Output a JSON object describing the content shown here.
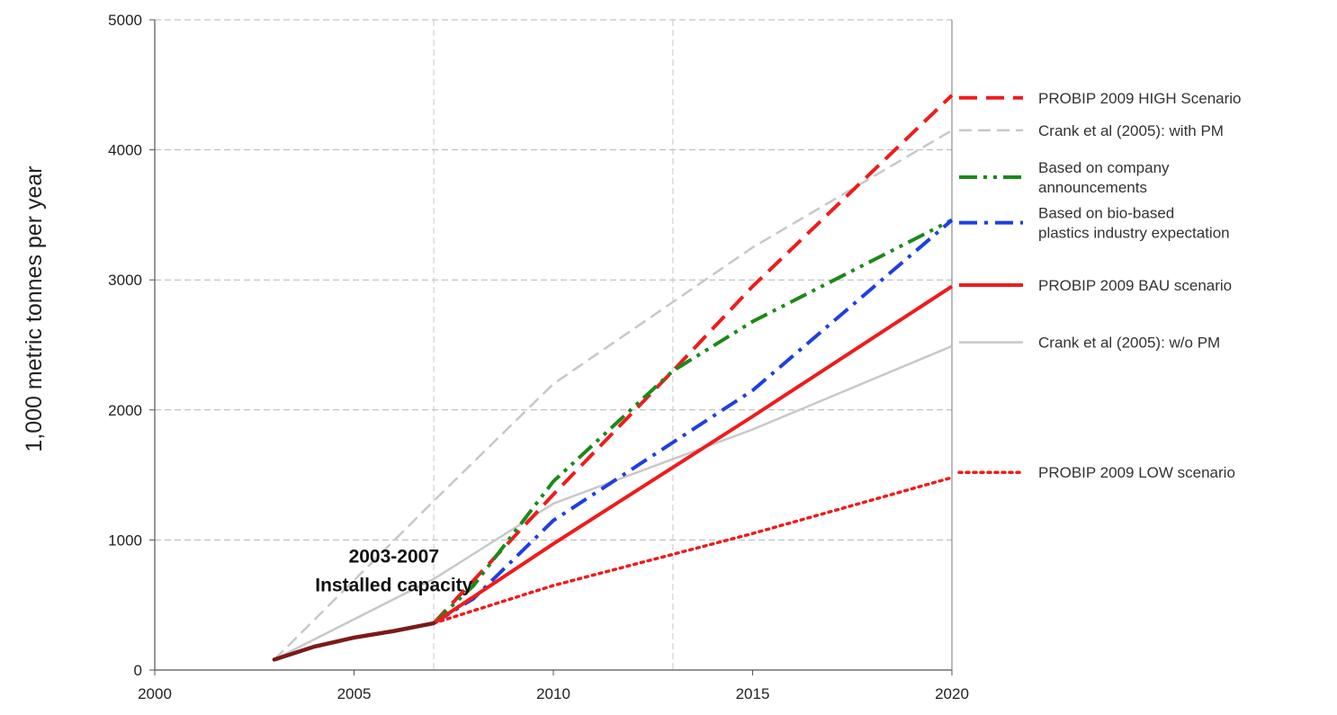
{
  "chart_data": {
    "type": "line",
    "ylabel": "1,000 metric tonnes per year",
    "xlim": [
      2000,
      2020
    ],
    "ylim": [
      0,
      5000
    ],
    "x_ticks": [
      "2000",
      "2005",
      "2010",
      "2015",
      "2020"
    ],
    "y_ticks": [
      "0",
      "1000",
      "2000",
      "3000",
      "4000",
      "5000"
    ],
    "grid": "horizontal dashed at y ticks; vertical dashed at 2007 and 2013",
    "vertical_grid_years": [
      2007,
      2013
    ],
    "legend_placement": "right",
    "annotation": {
      "line1": "2003-2007",
      "line2": "Installed capacity",
      "anchor": [
        2006,
        770
      ]
    },
    "series": [
      {
        "name": "2003-2007 Installed capacity",
        "color": "#7b1a1a",
        "style": "solid-thick",
        "legend": false,
        "points": [
          [
            2003,
            80
          ],
          [
            2004,
            180
          ],
          [
            2005,
            250
          ],
          [
            2006,
            300
          ],
          [
            2007,
            360
          ]
        ]
      },
      {
        "name": "Crank et al (2005): w/o PM",
        "label_lines": [
          "Crank et al (2005): w/o PM"
        ],
        "color": "#c8c8c8",
        "style": "solid",
        "legend_y_value": 2520,
        "points": [
          [
            2003,
            80
          ],
          [
            2007,
            700
          ],
          [
            2010,
            1280
          ],
          [
            2015,
            1850
          ],
          [
            2020,
            2490
          ]
        ]
      },
      {
        "name": "Crank et al (2005): with PM",
        "label_lines": [
          "Crank et al (2005): with PM"
        ],
        "color": "#c8c8c8",
        "style": "dashed",
        "legend_y_value": 4150,
        "points": [
          [
            2003,
            80
          ],
          [
            2007,
            1300
          ],
          [
            2010,
            2200
          ],
          [
            2015,
            3250
          ],
          [
            2020,
            4150
          ]
        ]
      },
      {
        "name": "PROBIP 2009 HIGH Scenario",
        "label_lines": [
          "PROBIP 2009 HIGH Scenario"
        ],
        "color": "#ee1c1c",
        "style": "dashed-thick",
        "legend_y_value": 4400,
        "points": [
          [
            2007,
            360
          ],
          [
            2010,
            1350
          ],
          [
            2013,
            2300
          ],
          [
            2015,
            2950
          ],
          [
            2020,
            4420
          ]
        ]
      },
      {
        "name": "Based on company announcements",
        "label_lines": [
          "Based on company",
          " announcements"
        ],
        "color": "#1a8a1a",
        "style": "dashdotdot",
        "legend_y_value": 3790,
        "points": [
          [
            2007,
            360
          ],
          [
            2008,
            650
          ],
          [
            2010,
            1450
          ],
          [
            2013,
            2300
          ],
          [
            2015,
            2680
          ],
          [
            2020,
            3460
          ]
        ]
      },
      {
        "name": "Based on bio-based plastics industry expectation",
        "label_lines": [
          "Based on bio-based",
          "plastics industry expectation"
        ],
        "color": "#1f3fe0",
        "style": "dashdot",
        "legend_y_value": 3440,
        "points": [
          [
            2007,
            360
          ],
          [
            2008,
            550
          ],
          [
            2010,
            1150
          ],
          [
            2015,
            2150
          ],
          [
            2020,
            3460
          ]
        ]
      },
      {
        "name": "PROBIP 2009 BAU scenario",
        "label_lines": [
          "PROBIP 2009 BAU scenario"
        ],
        "color": "#ee1c1c",
        "style": "solid-thick",
        "legend_y_value": 2960,
        "points": [
          [
            2007,
            360
          ],
          [
            2010,
            970
          ],
          [
            2015,
            1950
          ],
          [
            2020,
            2950
          ]
        ]
      },
      {
        "name": "PROBIP 2009 LOW scenario",
        "label_lines": [
          "PROBIP 2009 LOW scenario"
        ],
        "color": "#ee1c1c",
        "style": "dotted",
        "legend_y_value": 1520,
        "points": [
          [
            2007,
            360
          ],
          [
            2010,
            650
          ],
          [
            2015,
            1050
          ],
          [
            2020,
            1480
          ]
        ]
      }
    ]
  }
}
